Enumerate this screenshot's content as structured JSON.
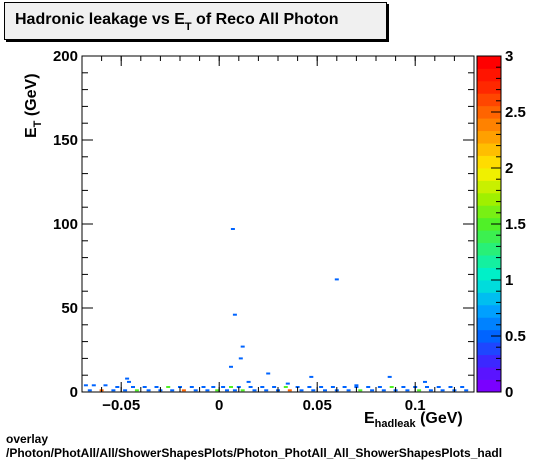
{
  "title": {
    "main": "Hadronic leakage vs E",
    "sub": "T",
    "tail": " of Reco All Photon"
  },
  "footer": {
    "line1": "overlay",
    "line2": "/Photon/PhotAll/All/ShowerShapesPlots/Photon_PhotAll_All_ShowerShapesPlots_hadl"
  },
  "chart_data": {
    "type": "heatmap",
    "title": "Hadronic leakage vs E_T of Reco All Photon",
    "xlabel": {
      "main": "E",
      "sub": "hadleak",
      "unit": " (GeV)"
    },
    "ylabel": {
      "main": "E",
      "sub": "T",
      "unit": " (GeV)"
    },
    "xlim": [
      -0.07,
      0.13
    ],
    "ylim": [
      0,
      200
    ],
    "x_ticks": [
      {
        "value": -0.05,
        "label": "−0.05"
      },
      {
        "value": 0,
        "label": "0"
      },
      {
        "value": 0.05,
        "label": "0.05"
      },
      {
        "value": 0.1,
        "label": "0.1"
      }
    ],
    "y_ticks": [
      {
        "value": 0,
        "label": "0"
      },
      {
        "value": 50,
        "label": "50"
      },
      {
        "value": 100,
        "label": "100"
      },
      {
        "value": 150,
        "label": "150"
      },
      {
        "value": 200,
        "label": "200"
      }
    ],
    "z_range": [
      0,
      3
    ],
    "z_ticks": [
      {
        "value": 0,
        "label": "0"
      },
      {
        "value": 0.5,
        "label": "0.5"
      },
      {
        "value": 1,
        "label": "1"
      },
      {
        "value": 1.5,
        "label": "1.5"
      },
      {
        "value": 2,
        "label": "2"
      },
      {
        "value": 2.5,
        "label": "2.5"
      },
      {
        "value": 3,
        "label": "3"
      }
    ],
    "palette": [
      "#7a00ff",
      "#5a14ff",
      "#3c28ff",
      "#1e46ff",
      "#0064ff",
      "#0082ff",
      "#00a0ff",
      "#00bef0",
      "#00dcdc",
      "#00f0c8",
      "#14f0a0",
      "#28f078",
      "#3cf050",
      "#50f028",
      "#78f014",
      "#a0f000",
      "#c8f000",
      "#f0f000",
      "#ffdc00",
      "#ffbe00",
      "#ffa000",
      "#ff8200",
      "#ff6400",
      "#ff4600",
      "#ff2800",
      "#ff1400",
      "#ff0000"
    ],
    "cells": [
      [
        0.007,
        97,
        1
      ],
      [
        0.06,
        67,
        1
      ],
      [
        0.008,
        46,
        1
      ],
      [
        0.012,
        27,
        1
      ],
      [
        0.011,
        20,
        1
      ],
      [
        0.006,
        15,
        1
      ],
      [
        0.025,
        11,
        1
      ],
      [
        0.047,
        9,
        1
      ],
      [
        0.087,
        9,
        1
      ],
      [
        -0.047,
        8,
        1
      ],
      [
        0.105,
        6,
        1
      ],
      [
        -0.046,
        6,
        1
      ],
      [
        0.015,
        6,
        1
      ],
      [
        0.035,
        5,
        1
      ],
      [
        0.07,
        4,
        1
      ],
      [
        -0.068,
        4,
        1
      ],
      [
        -0.064,
        4,
        1
      ],
      [
        -0.058,
        4,
        1
      ],
      [
        -0.052,
        3,
        1
      ],
      [
        -0.044,
        3,
        1
      ],
      [
        -0.038,
        3,
        1
      ],
      [
        -0.032,
        3,
        1
      ],
      [
        -0.026,
        3,
        2
      ],
      [
        -0.02,
        3,
        1
      ],
      [
        -0.014,
        3,
        1
      ],
      [
        -0.008,
        3,
        1
      ],
      [
        -0.003,
        3,
        1
      ],
      [
        0.002,
        3,
        1
      ],
      [
        0.006,
        3,
        2
      ],
      [
        0.01,
        3,
        1
      ],
      [
        0.016,
        3,
        1
      ],
      [
        0.022,
        3,
        1
      ],
      [
        0.028,
        3,
        1
      ],
      [
        0.034,
        3,
        2
      ],
      [
        0.04,
        3,
        1
      ],
      [
        0.046,
        3,
        1
      ],
      [
        0.052,
        3,
        1
      ],
      [
        0.058,
        3,
        1
      ],
      [
        0.064,
        3,
        1
      ],
      [
        0.07,
        3,
        1
      ],
      [
        0.076,
        3,
        1
      ],
      [
        0.082,
        3,
        1
      ],
      [
        0.088,
        3,
        2
      ],
      [
        0.094,
        3,
        1
      ],
      [
        0.1,
        3,
        1
      ],
      [
        0.106,
        3,
        1
      ],
      [
        0.112,
        3,
        1
      ],
      [
        0.118,
        3,
        1
      ],
      [
        0.124,
        3,
        1
      ],
      [
        -0.066,
        1,
        1
      ],
      [
        -0.06,
        1,
        3
      ],
      [
        -0.054,
        1,
        1
      ],
      [
        -0.048,
        1,
        1
      ],
      [
        -0.042,
        1,
        2
      ],
      [
        -0.036,
        1,
        1
      ],
      [
        -0.03,
        1,
        1
      ],
      [
        -0.024,
        1,
        1
      ],
      [
        -0.018,
        1,
        3
      ],
      [
        -0.012,
        1,
        1
      ],
      [
        -0.006,
        1,
        1
      ],
      [
        -0.001,
        1,
        2
      ],
      [
        0.004,
        1,
        1
      ],
      [
        0.008,
        1,
        1
      ],
      [
        0.012,
        1,
        2
      ],
      [
        0.018,
        1,
        1
      ],
      [
        0.024,
        1,
        1
      ],
      [
        0.03,
        1,
        1
      ],
      [
        0.036,
        1,
        3
      ],
      [
        0.042,
        1,
        1
      ],
      [
        0.048,
        1,
        1
      ],
      [
        0.054,
        1,
        1
      ],
      [
        0.06,
        1,
        1
      ],
      [
        0.066,
        1,
        1
      ],
      [
        0.072,
        1,
        2
      ],
      [
        0.078,
        1,
        1
      ],
      [
        0.084,
        1,
        1
      ],
      [
        0.09,
        1,
        1
      ],
      [
        0.096,
        1,
        1
      ],
      [
        0.102,
        1,
        2
      ],
      [
        0.108,
        1,
        1
      ],
      [
        0.114,
        1,
        1
      ],
      [
        0.12,
        1,
        1
      ],
      [
        0.126,
        1,
        1
      ]
    ]
  }
}
